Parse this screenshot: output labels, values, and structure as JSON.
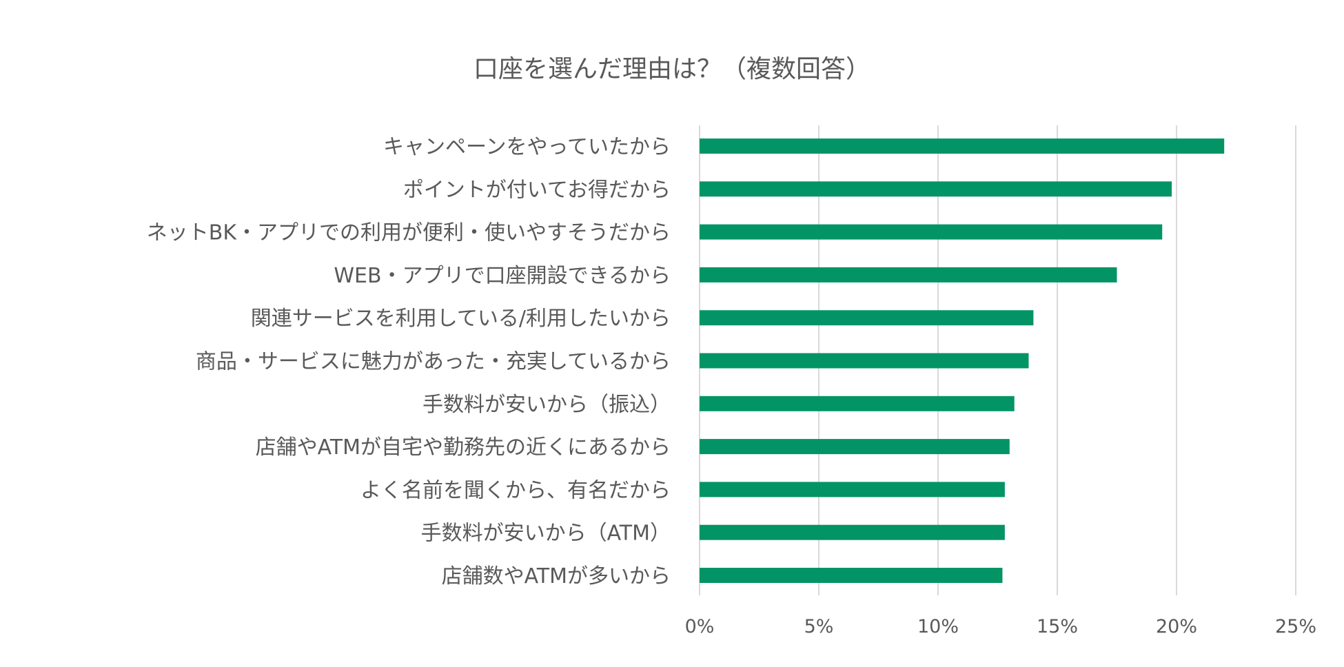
{
  "chart_data": {
    "type": "bar",
    "orientation": "horizontal",
    "title": "口座を選んだ理由は？（複数回答）",
    "xlabel": "",
    "ylabel": "",
    "xlim": [
      0,
      25
    ],
    "x_ticks": [
      0,
      5,
      10,
      15,
      20,
      25
    ],
    "x_tick_labels": [
      "0%",
      "5%",
      "10%",
      "15%",
      "20%",
      "25%"
    ],
    "grid": true,
    "bar_color": "#039466",
    "categories": [
      "キャンペーンをやっていたから",
      "ポイントが付いてお得だから",
      "ネットBK・アプリでの利用が便利・使いやすそうだから",
      "WEB・アプリで口座開設できるから",
      "関連サービスを利用している/利用したいから",
      "商品・サービスに魅力があった・充実しているから",
      "手数料が安いから（振込）",
      "店舗やATMが自宅や勤務先の近くにあるから",
      "よく名前を聞くから、有名だから",
      "手数料が安いから（ATM）",
      "店舗数やATMが多いから"
    ],
    "values": [
      22.0,
      19.8,
      19.4,
      17.5,
      14.0,
      13.8,
      13.2,
      13.0,
      12.8,
      12.8,
      12.7
    ],
    "unit": "%"
  }
}
